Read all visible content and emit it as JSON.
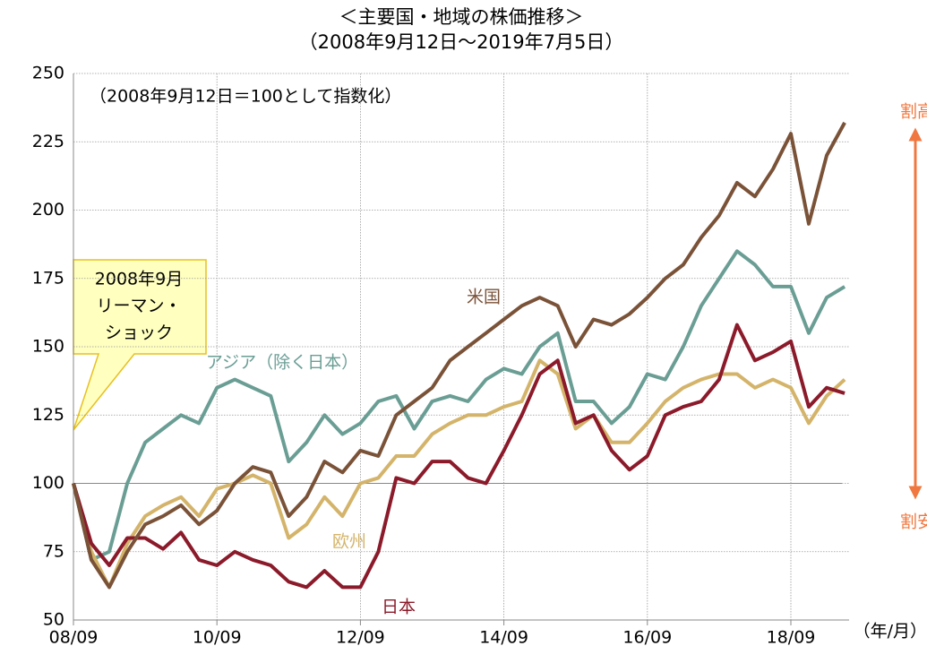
{
  "chart_data": {
    "type": "line",
    "title": "＜主要国・地域の株価推移＞",
    "subtitle": "（2008年9月12日～2019年7月5日）",
    "note": "（2008年9月12日＝100として指数化）",
    "callout": [
      "2008年9月",
      "リーマン・",
      "ショック"
    ],
    "x_unit_label": "（年/月）",
    "side_labels": [
      "割高",
      "割安"
    ],
    "x": [
      "08/09",
      "08/12",
      "09/03",
      "09/06",
      "09/09",
      "09/12",
      "10/03",
      "10/06",
      "10/09",
      "10/12",
      "11/03",
      "11/06",
      "11/09",
      "11/12",
      "12/03",
      "12/06",
      "12/09",
      "12/12",
      "13/03",
      "13/06",
      "13/09",
      "13/12",
      "14/03",
      "14/06",
      "14/09",
      "14/12",
      "15/03",
      "15/06",
      "15/09",
      "15/12",
      "16/03",
      "16/06",
      "16/09",
      "16/12",
      "17/03",
      "17/06",
      "17/09",
      "17/12",
      "18/03",
      "18/06",
      "18/09",
      "18/12",
      "19/03",
      "19/06"
    ],
    "xticks": [
      "08/09",
      "10/09",
      "12/09",
      "14/09",
      "16/09",
      "18/09"
    ],
    "ylim": [
      50,
      250
    ],
    "yticks": [
      50,
      75,
      100,
      125,
      150,
      175,
      200,
      225,
      250
    ],
    "grid": true,
    "series": [
      {
        "name": "米国",
        "color": "#7a5238",
        "values": [
          100,
          72,
          62,
          75,
          85,
          88,
          92,
          85,
          90,
          100,
          106,
          104,
          88,
          95,
          108,
          104,
          112,
          110,
          125,
          130,
          135,
          145,
          150,
          155,
          160,
          165,
          168,
          165,
          150,
          160,
          158,
          162,
          168,
          175,
          180,
          190,
          198,
          210,
          205,
          215,
          228,
          195,
          220,
          232
        ]
      },
      {
        "name": "アジア（除く日本）",
        "color": "#6a9e94",
        "values": [
          100,
          72,
          75,
          100,
          115,
          120,
          125,
          122,
          135,
          138,
          135,
          132,
          108,
          115,
          125,
          118,
          122,
          130,
          132,
          120,
          130,
          132,
          130,
          138,
          142,
          140,
          150,
          155,
          130,
          130,
          122,
          128,
          140,
          138,
          150,
          165,
          175,
          185,
          180,
          172,
          172,
          155,
          168,
          172
        ]
      },
      {
        "name": "欧州",
        "color": "#d4b46a",
        "values": [
          100,
          75,
          62,
          78,
          88,
          92,
          95,
          88,
          98,
          100,
          103,
          100,
          80,
          85,
          95,
          88,
          100,
          102,
          110,
          110,
          118,
          122,
          125,
          125,
          128,
          130,
          145,
          140,
          120,
          125,
          115,
          115,
          122,
          130,
          135,
          138,
          140,
          140,
          135,
          138,
          135,
          122,
          132,
          138
        ]
      },
      {
        "name": "日本",
        "color": "#8b1a2a",
        "values": [
          100,
          78,
          70,
          80,
          80,
          76,
          82,
          72,
          70,
          75,
          72,
          70,
          64,
          62,
          68,
          62,
          62,
          75,
          102,
          100,
          108,
          108,
          102,
          100,
          112,
          125,
          140,
          145,
          122,
          125,
          112,
          105,
          110,
          125,
          128,
          130,
          138,
          158,
          145,
          148,
          152,
          128,
          135,
          133
        ]
      }
    ]
  }
}
